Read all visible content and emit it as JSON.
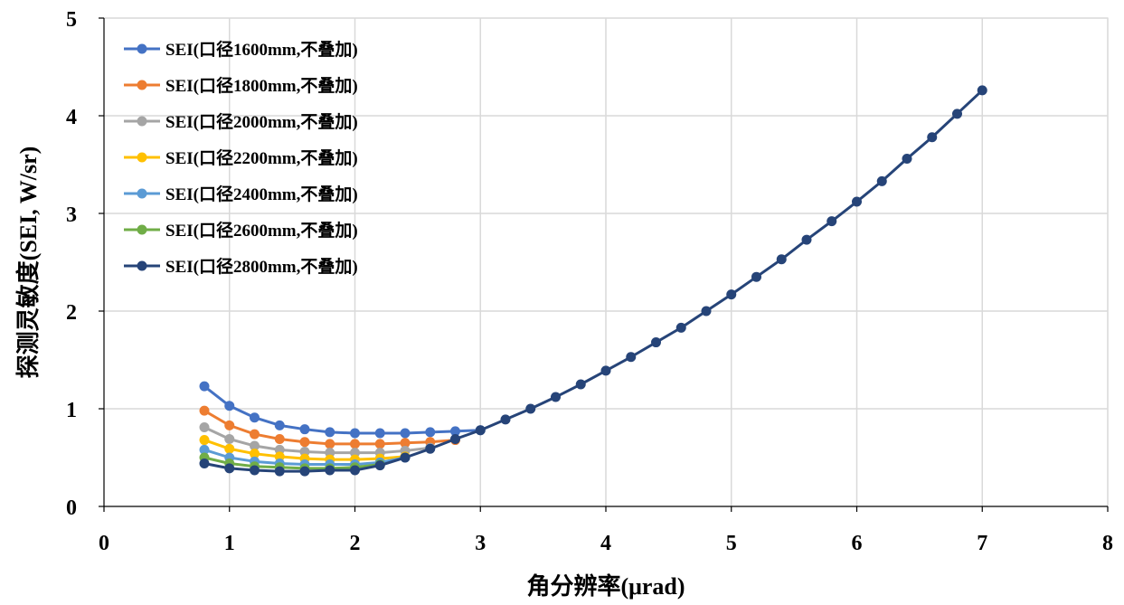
{
  "chart_data": {
    "type": "line",
    "title": "",
    "xlabel": "角分辨率(μrad)",
    "ylabel": "探测灵敏度(SEI, W/sr)",
    "xlim": [
      0,
      8
    ],
    "ylim": [
      0,
      5
    ],
    "x_ticks": [
      "0",
      "1",
      "2",
      "3",
      "4",
      "5",
      "6",
      "7",
      "8"
    ],
    "y_ticks": [
      "0",
      "1",
      "2",
      "3",
      "4",
      "5"
    ],
    "grid": true,
    "legend_position": "top-left",
    "series": [
      {
        "name": "SEI(口径1600mm,不叠加)",
        "color": "#4472C4",
        "x": [
          0.8,
          1.0,
          1.2,
          1.4,
          1.6,
          1.8,
          2.0,
          2.2,
          2.4,
          2.6,
          2.8,
          3.0
        ],
        "y": [
          1.23,
          1.03,
          0.91,
          0.83,
          0.79,
          0.76,
          0.75,
          0.75,
          0.75,
          0.76,
          0.77,
          0.78
        ]
      },
      {
        "name": "SEI(口径1800mm,不叠加)",
        "color": "#ED7D31",
        "x": [
          0.8,
          1.0,
          1.2,
          1.4,
          1.6,
          1.8,
          2.0,
          2.2,
          2.4,
          2.6,
          2.8
        ],
        "y": [
          0.98,
          0.83,
          0.74,
          0.69,
          0.66,
          0.64,
          0.64,
          0.64,
          0.65,
          0.66,
          0.68
        ]
      },
      {
        "name": "SEI(口径2000mm,不叠加)",
        "color": "#A5A5A5",
        "x": [
          0.8,
          1.0,
          1.2,
          1.4,
          1.6,
          1.8,
          2.0,
          2.2,
          2.4,
          2.6
        ],
        "y": [
          0.81,
          0.69,
          0.62,
          0.58,
          0.56,
          0.55,
          0.55,
          0.55,
          0.57,
          0.6
        ]
      },
      {
        "name": "SEI(口径2200mm,不叠加)",
        "color": "#FFC000",
        "x": [
          0.8,
          1.0,
          1.2,
          1.4,
          1.6,
          1.8,
          2.0,
          2.2,
          2.4
        ],
        "y": [
          0.68,
          0.59,
          0.54,
          0.51,
          0.49,
          0.48,
          0.48,
          0.49,
          0.51
        ]
      },
      {
        "name": "SEI(口径2400mm,不叠加)",
        "color": "#5B9BD5",
        "x": [
          0.8,
          1.0,
          1.2,
          1.4,
          1.6,
          1.8,
          2.0,
          2.2,
          2.4
        ],
        "y": [
          0.58,
          0.5,
          0.46,
          0.44,
          0.43,
          0.43,
          0.43,
          0.45,
          0.5
        ]
      },
      {
        "name": "SEI(口径2600mm,不叠加)",
        "color": "#70AD47",
        "x": [
          0.8,
          1.0,
          1.2,
          1.4,
          1.6,
          1.8,
          2.0,
          2.2
        ],
        "y": [
          0.5,
          0.44,
          0.41,
          0.4,
          0.39,
          0.39,
          0.4,
          0.43
        ]
      },
      {
        "name": "SEI(口径2800mm,不叠加)",
        "color": "#264478",
        "x": [
          0.8,
          1.0,
          1.2,
          1.4,
          1.6,
          1.8,
          2.0,
          2.2,
          2.4,
          2.6,
          2.8,
          3.0,
          3.2,
          3.4,
          3.6,
          3.8,
          4.0,
          4.2,
          4.4,
          4.6,
          4.8,
          5.0,
          5.2,
          5.4,
          5.6,
          5.8,
          6.0,
          6.2,
          6.4,
          6.6,
          6.8,
          7.0
        ],
        "y": [
          0.44,
          0.39,
          0.37,
          0.36,
          0.36,
          0.37,
          0.37,
          0.42,
          0.5,
          0.59,
          0.69,
          0.78,
          0.89,
          1.0,
          1.12,
          1.25,
          1.39,
          1.53,
          1.68,
          1.83,
          2.0,
          2.17,
          2.35,
          2.53,
          2.73,
          2.92,
          3.12,
          3.33,
          3.56,
          3.78,
          4.02,
          4.26
        ]
      }
    ]
  }
}
